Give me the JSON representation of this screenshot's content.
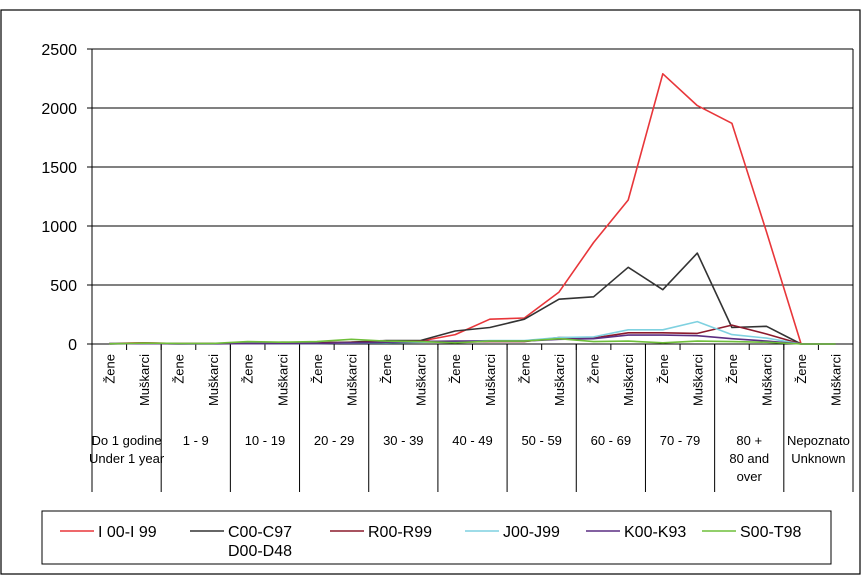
{
  "chart_data": {
    "type": "line",
    "ylim": [
      0,
      2500
    ],
    "yticks": [
      0,
      500,
      1000,
      1500,
      2000,
      2500
    ],
    "grid": "horizontal",
    "legend": "bottom",
    "sub_labels": [
      "Žene",
      "Muškarci"
    ],
    "groups": [
      {
        "lines": [
          "Do 1 godine",
          "Under 1 year"
        ]
      },
      {
        "lines": [
          "1 - 9"
        ]
      },
      {
        "lines": [
          "10 - 19"
        ]
      },
      {
        "lines": [
          "20 - 29"
        ]
      },
      {
        "lines": [
          "30 - 39"
        ]
      },
      {
        "lines": [
          "40 - 49"
        ]
      },
      {
        "lines": [
          "50 - 59"
        ]
      },
      {
        "lines": [
          "60 - 69"
        ]
      },
      {
        "lines": [
          "70 - 79"
        ]
      },
      {
        "lines": [
          "80 +",
          "80 and",
          "over"
        ]
      },
      {
        "lines": [
          "Nepoznato",
          "Unknown"
        ]
      }
    ],
    "series": [
      {
        "name": "I 00-I 99",
        "color": "#e8363a",
        "values": [
          5,
          10,
          3,
          3,
          5,
          8,
          10,
          15,
          20,
          25,
          80,
          210,
          220,
          440,
          860,
          1220,
          2290,
          2020,
          1870,
          950,
          0,
          0
        ]
      },
      {
        "name": "C00-C97 D00-D48",
        "color": "#333333",
        "values": [
          2,
          5,
          2,
          3,
          5,
          15,
          10,
          15,
          30,
          30,
          110,
          140,
          210,
          380,
          400,
          650,
          460,
          770,
          140,
          150,
          0,
          0
        ]
      },
      {
        "name": "R00-R99",
        "color": "#8b1a2c",
        "values": [
          5,
          8,
          3,
          3,
          8,
          10,
          8,
          12,
          20,
          25,
          15,
          20,
          20,
          55,
          50,
          95,
          95,
          90,
          160,
          85,
          0,
          0
        ]
      },
      {
        "name": "J00-J99",
        "color": "#7fd1e0",
        "values": [
          3,
          5,
          2,
          2,
          5,
          5,
          5,
          8,
          10,
          15,
          20,
          30,
          30,
          55,
          60,
          120,
          120,
          190,
          80,
          50,
          0,
          0
        ]
      },
      {
        "name": "K00-K93",
        "color": "#5a2d82",
        "values": [
          1,
          3,
          2,
          2,
          3,
          5,
          5,
          10,
          15,
          20,
          25,
          25,
          25,
          40,
          45,
          75,
          75,
          70,
          45,
          25,
          0,
          0
        ]
      },
      {
        "name": "S00-T98",
        "color": "#6fbf3a",
        "values": [
          2,
          8,
          5,
          5,
          20,
          15,
          20,
          40,
          25,
          20,
          10,
          25,
          25,
          45,
          20,
          25,
          10,
          25,
          20,
          15,
          0,
          0
        ]
      }
    ]
  }
}
